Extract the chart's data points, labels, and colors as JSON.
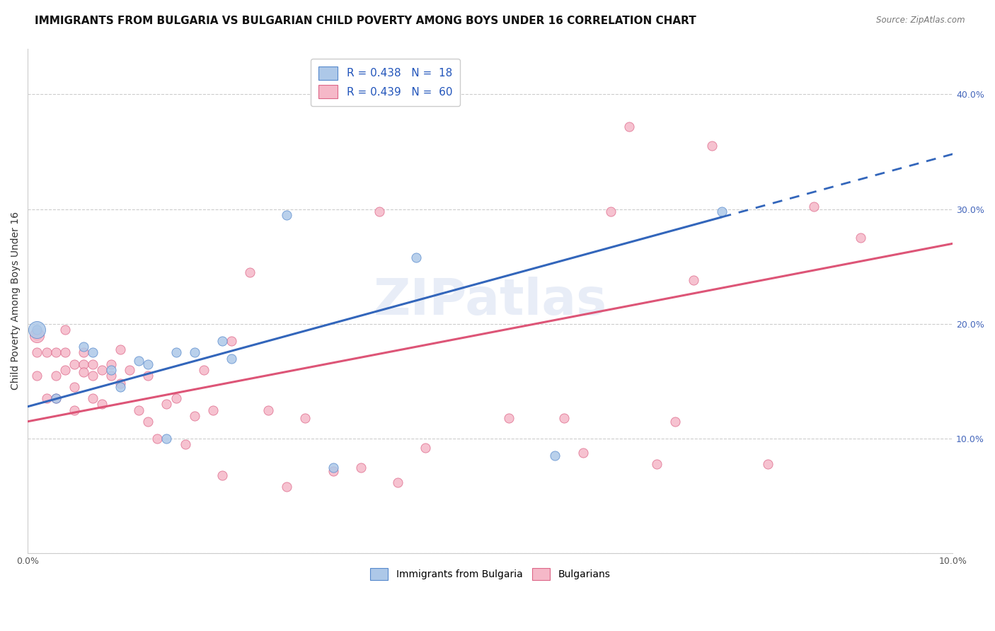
{
  "title": "IMMIGRANTS FROM BULGARIA VS BULGARIAN CHILD POVERTY AMONG BOYS UNDER 16 CORRELATION CHART",
  "source": "Source: ZipAtlas.com",
  "ylabel": "Child Poverty Among Boys Under 16",
  "xlim": [
    0.0,
    0.1
  ],
  "ylim": [
    0.0,
    0.44
  ],
  "legend_r1": "R = 0.438",
  "legend_n1": "N =  18",
  "legend_r2": "R = 0.439",
  "legend_n2": "N =  60",
  "series1_color": "#adc8e8",
  "series1_edge": "#5588cc",
  "series2_color": "#f5b8c8",
  "series2_edge": "#dd6688",
  "line1_color": "#3366bb",
  "line2_color": "#dd5577",
  "watermark": "ZIPatlas",
  "blue_scatter_x": [
    0.001,
    0.003,
    0.006,
    0.007,
    0.009,
    0.01,
    0.012,
    0.013,
    0.015,
    0.016,
    0.018,
    0.021,
    0.022,
    0.028,
    0.033,
    0.042,
    0.057,
    0.075
  ],
  "blue_scatter_y": [
    0.195,
    0.135,
    0.18,
    0.175,
    0.16,
    0.145,
    0.168,
    0.165,
    0.1,
    0.175,
    0.175,
    0.185,
    0.17,
    0.295,
    0.075,
    0.258,
    0.085,
    0.298
  ],
  "pink_scatter_x": [
    0.001,
    0.001,
    0.001,
    0.002,
    0.002,
    0.003,
    0.003,
    0.003,
    0.004,
    0.004,
    0.004,
    0.005,
    0.005,
    0.005,
    0.006,
    0.006,
    0.006,
    0.007,
    0.007,
    0.007,
    0.008,
    0.008,
    0.009,
    0.009,
    0.01,
    0.01,
    0.011,
    0.012,
    0.013,
    0.013,
    0.014,
    0.015,
    0.016,
    0.017,
    0.018,
    0.019,
    0.02,
    0.021,
    0.022,
    0.024,
    0.026,
    0.028,
    0.03,
    0.033,
    0.036,
    0.038,
    0.04,
    0.043,
    0.052,
    0.058,
    0.06,
    0.063,
    0.065,
    0.068,
    0.07,
    0.072,
    0.074,
    0.08,
    0.085,
    0.09
  ],
  "pink_scatter_y": [
    0.19,
    0.175,
    0.155,
    0.175,
    0.135,
    0.175,
    0.155,
    0.135,
    0.16,
    0.195,
    0.175,
    0.165,
    0.145,
    0.125,
    0.165,
    0.175,
    0.158,
    0.155,
    0.165,
    0.135,
    0.16,
    0.13,
    0.155,
    0.165,
    0.148,
    0.178,
    0.16,
    0.125,
    0.115,
    0.155,
    0.1,
    0.13,
    0.135,
    0.095,
    0.12,
    0.16,
    0.125,
    0.068,
    0.185,
    0.245,
    0.125,
    0.058,
    0.118,
    0.072,
    0.075,
    0.298,
    0.062,
    0.092,
    0.118,
    0.118,
    0.088,
    0.298,
    0.372,
    0.078,
    0.115,
    0.238,
    0.355,
    0.078,
    0.302,
    0.275
  ],
  "title_fontsize": 11,
  "axis_fontsize": 10,
  "tick_fontsize": 9,
  "legend_fontsize": 11,
  "dot_size": 90,
  "big_dot_size": 300,
  "line1_intercept": 0.128,
  "line1_slope": 2.2,
  "line2_intercept": 0.115,
  "line2_slope": 1.55
}
